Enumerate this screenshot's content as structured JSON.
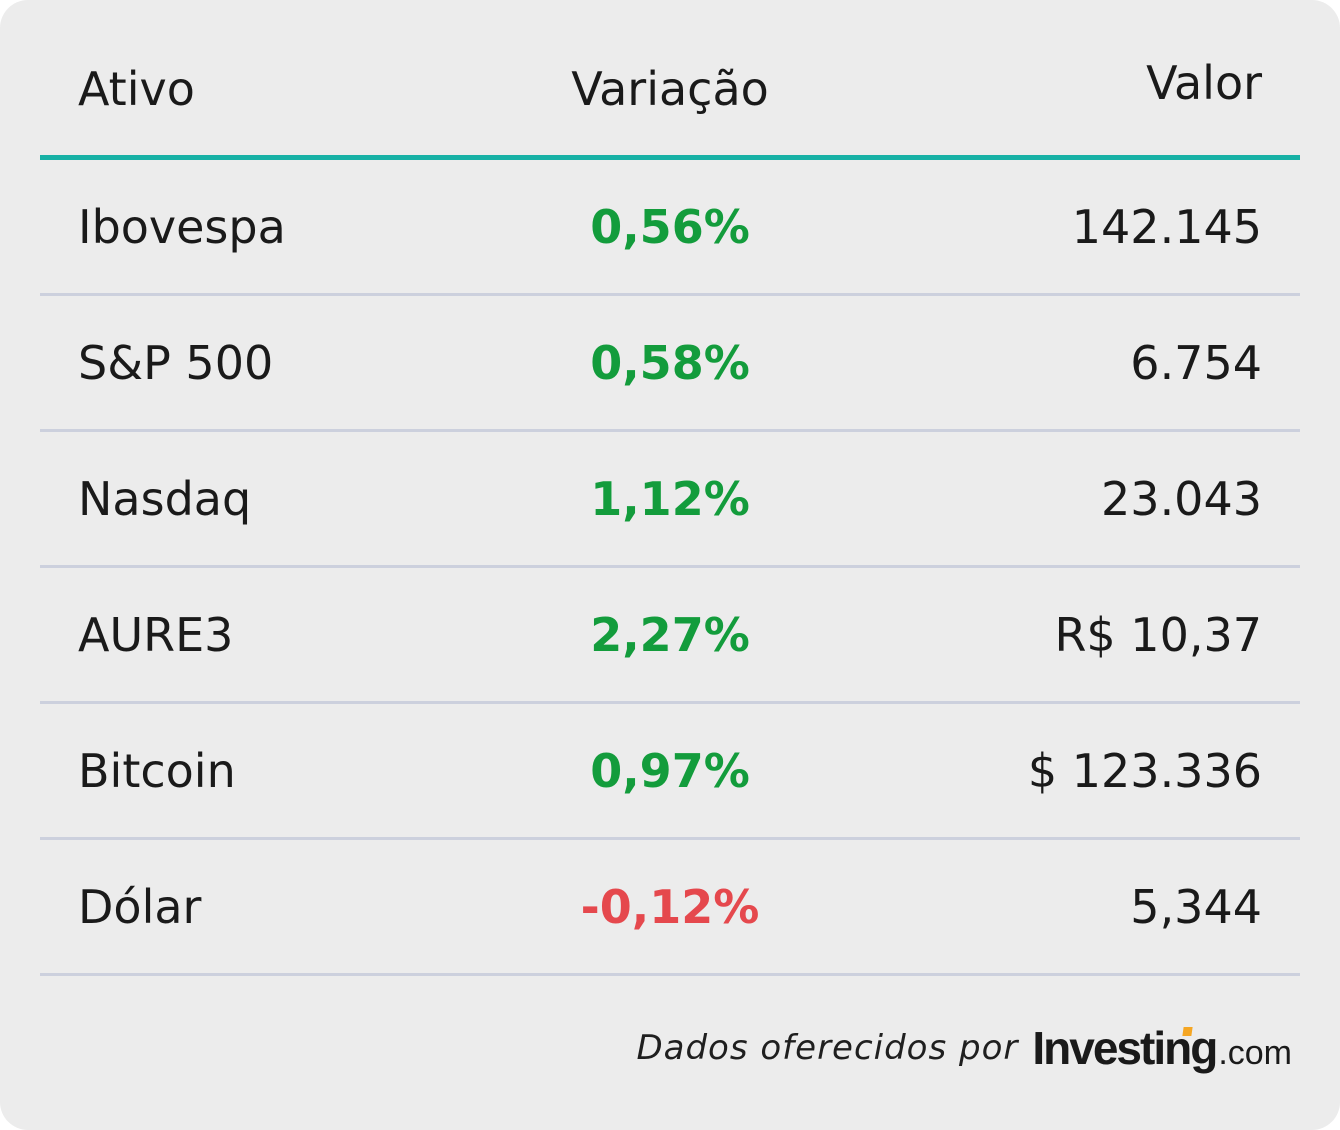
{
  "header": {
    "asset": "Ativo",
    "variation": "Variação",
    "value": "Valor"
  },
  "colors": {
    "accent": "#17b1a5",
    "positive": "#139c3c",
    "negative": "#e5484d",
    "background": "#ececec",
    "divider": "#ccd0dd"
  },
  "rows": [
    {
      "name": "Ibovespa",
      "variation": "0,56%",
      "value": "142.145",
      "trend": "pos"
    },
    {
      "name": "S&P 500",
      "variation": "0,58%",
      "value": "6.754",
      "trend": "pos"
    },
    {
      "name": "Nasdaq",
      "variation": "1,12%",
      "value": "23.043",
      "trend": "pos"
    },
    {
      "name": "AURE3",
      "variation": "2,27%",
      "value": "R$ 10,37",
      "trend": "pos"
    },
    {
      "name": "Bitcoin",
      "variation": "0,97%",
      "value": "$ 123.336",
      "trend": "pos"
    },
    {
      "name": "Dólar",
      "variation": "-0,12%",
      "value": "5,344",
      "trend": "neg"
    }
  ],
  "footer": {
    "caption": "Dados oferecidos por",
    "brand": "Investing",
    "tld": ".com"
  }
}
